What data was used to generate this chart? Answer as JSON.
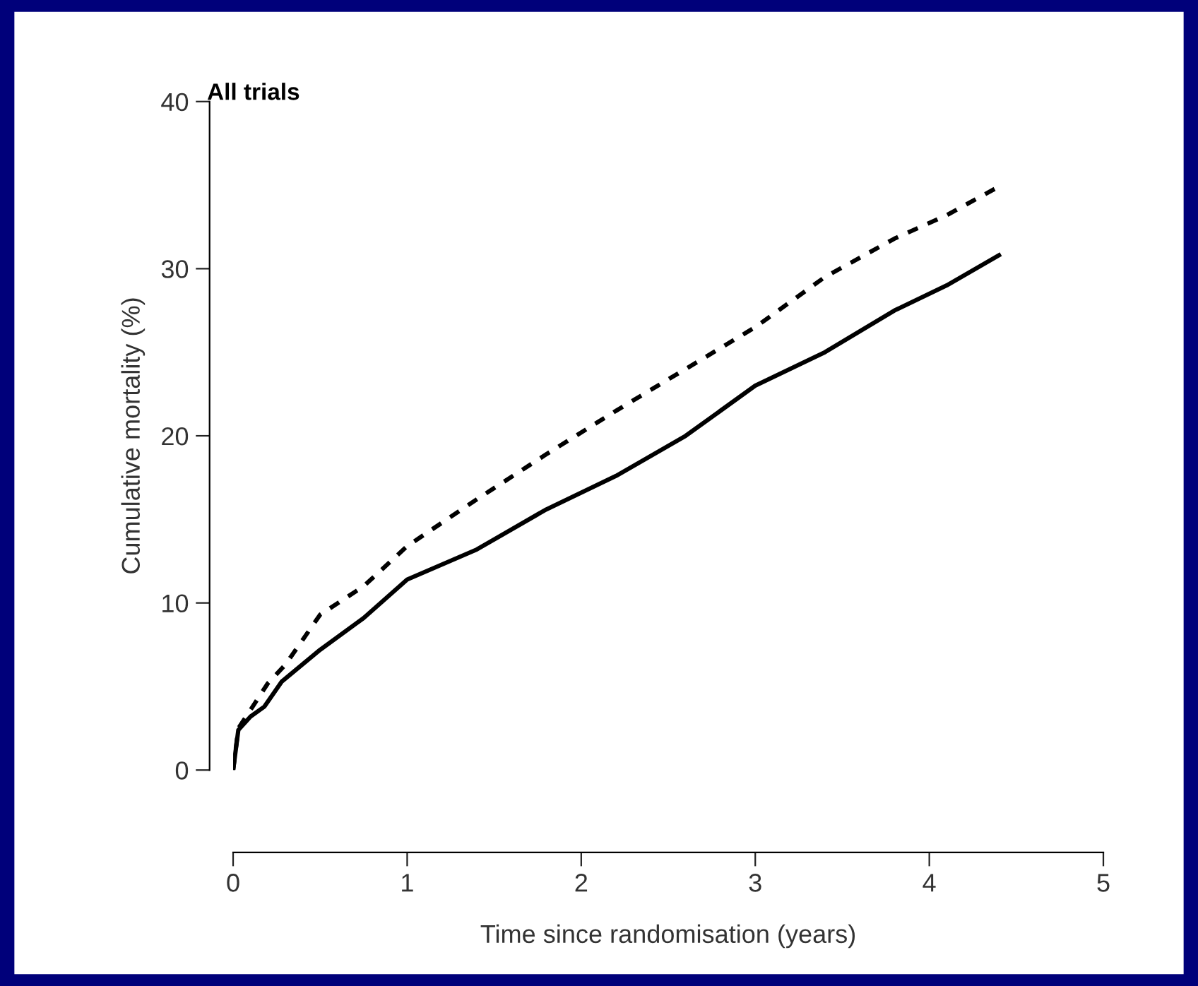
{
  "chart_data": {
    "type": "line",
    "title": "All trials",
    "xlabel": "Time since randomisation (years)",
    "ylabel": "Cumulative mortality (%)",
    "series": [
      {
        "color": "#000000",
        "line_style": "dashed",
        "x": [
          0,
          0.03,
          0.1,
          0.2,
          0.3,
          0.5,
          0.75,
          1.0,
          1.4,
          1.8,
          2.2,
          2.6,
          3.0,
          3.4,
          3.8,
          4.1,
          4.38
        ],
        "values": [
          0,
          2.5,
          3.6,
          5.2,
          6.3,
          9.3,
          11,
          13.4,
          16.2,
          18.9,
          21.5,
          24,
          26.5,
          29.5,
          31.8,
          33.2,
          34.8
        ]
      },
      {
        "color": "#000000",
        "line_style": "solid",
        "x": [
          0,
          0.03,
          0.1,
          0.18,
          0.28,
          0.5,
          0.75,
          1.0,
          1.4,
          1.8,
          2.2,
          2.6,
          3.0,
          3.4,
          3.8,
          4.1,
          4.4
        ],
        "values": [
          0,
          2.4,
          3.2,
          3.8,
          5.3,
          7.2,
          9.1,
          11.4,
          13.2,
          15.6,
          17.6,
          20,
          23,
          25,
          27.5,
          29,
          30.8
        ]
      }
    ],
    "xlim": [
      0,
      5
    ],
    "xticks": [
      0,
      1,
      2,
      3,
      4,
      5
    ],
    "ylim": [
      0,
      40
    ],
    "yticks": [
      0,
      10,
      20,
      30,
      40
    ],
    "grid": false,
    "legend": false
  }
}
